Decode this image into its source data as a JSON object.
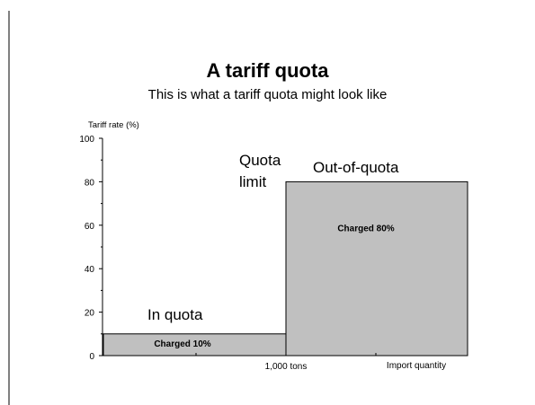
{
  "slide": {
    "title": "A tariff quota",
    "subtitle": "This is what a tariff quota might look like"
  },
  "chart_data": {
    "type": "bar",
    "title": "A tariff quota",
    "subtitle": "This is what a tariff quota might look like",
    "ylabel": "Tariff rate (%)",
    "xlabel": "Import quantity",
    "ylim": [
      0,
      100
    ],
    "yticks": [
      0,
      20,
      40,
      60,
      80,
      100
    ],
    "x_marker_label": "1,000 tons",
    "bars": [
      {
        "region": "In quota",
        "value": 10,
        "inner_label": "Charged 10%"
      },
      {
        "region": "Out-of-quota",
        "value": 80,
        "inner_label": "Charged 80%"
      }
    ],
    "quota_limit_label": [
      "Quota",
      "limit"
    ],
    "bar_fill": "#c0c0c0",
    "bar_stroke": "#000000",
    "grid": false
  }
}
